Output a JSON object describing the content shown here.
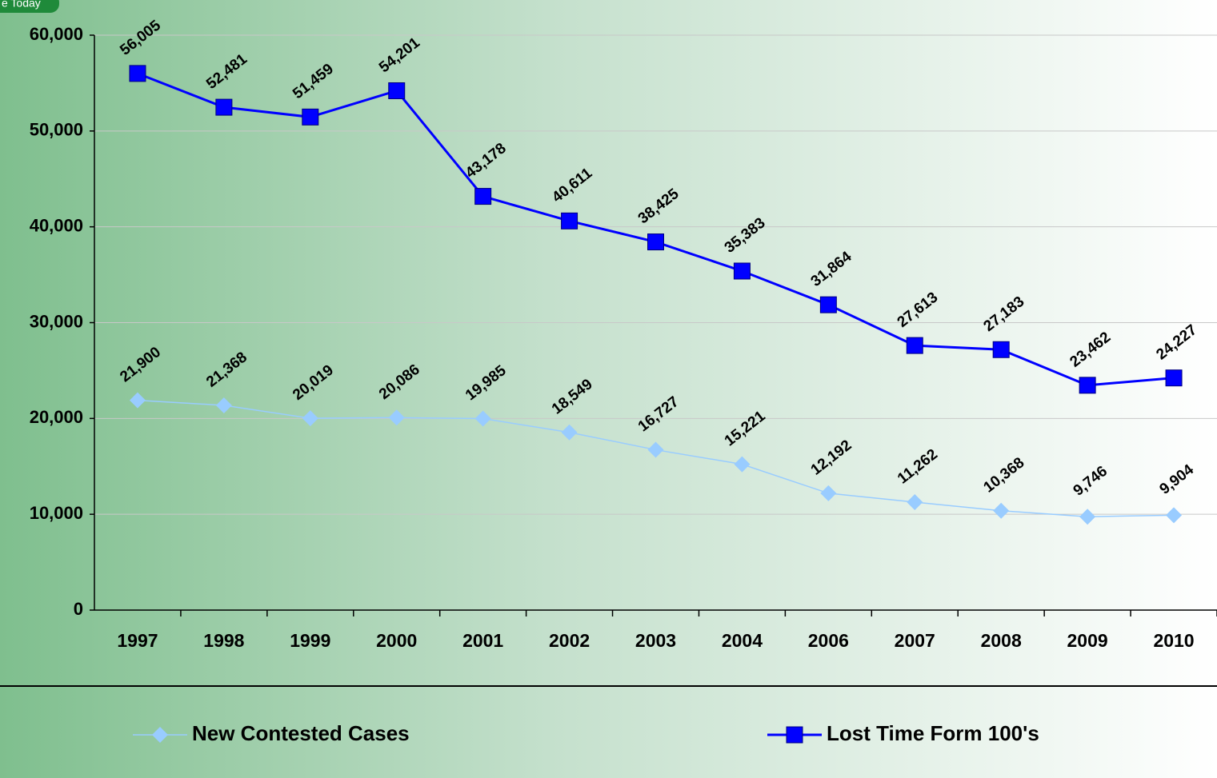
{
  "badge": "e Today",
  "chart_data": {
    "type": "line",
    "categories": [
      "1997",
      "1998",
      "1999",
      "2000",
      "2001",
      "2002",
      "2003",
      "2004",
      "2006",
      "2007",
      "2008",
      "2009",
      "2010"
    ],
    "series": [
      {
        "name": "New Contested Cases",
        "color": "#99ccff",
        "marker": "diamond",
        "values": [
          21900,
          21368,
          20019,
          20086,
          19985,
          18549,
          16727,
          15221,
          12192,
          11262,
          10368,
          9746,
          9904
        ],
        "value_labels": [
          "21,900",
          "21,368",
          "20,019",
          "20,086",
          "19,985",
          "18,549",
          "16,727",
          "15,221",
          "12,192",
          "11,262",
          "10,368",
          "9,746",
          "9,904"
        ]
      },
      {
        "name": "Lost Time Form 100's",
        "color": "#0000ff",
        "marker": "square",
        "values": [
          56005,
          52481,
          51459,
          54201,
          43178,
          40611,
          38425,
          35383,
          31864,
          27613,
          27183,
          23462,
          24227
        ],
        "value_labels": [
          "56,005",
          "52,481",
          "51,459",
          "54,201",
          "43,178",
          "40,611",
          "38,425",
          "35,383",
          "31,864",
          "27,613",
          "27,183",
          "23,462",
          "24,227"
        ]
      }
    ],
    "ylim": [
      0,
      60000
    ],
    "yticks": [
      0,
      {
        "value": 10000,
        "label": "10,000"
      },
      {
        "value": 20000,
        "label": "20,000"
      },
      {
        "value": 30000,
        "label": "30,000"
      },
      {
        "value": 40000,
        "label": "40,000"
      },
      {
        "value": 50000,
        "label": "50,000"
      },
      {
        "value": 60000,
        "label": "60,000"
      }
    ],
    "grid": true,
    "legend": "bottom"
  }
}
